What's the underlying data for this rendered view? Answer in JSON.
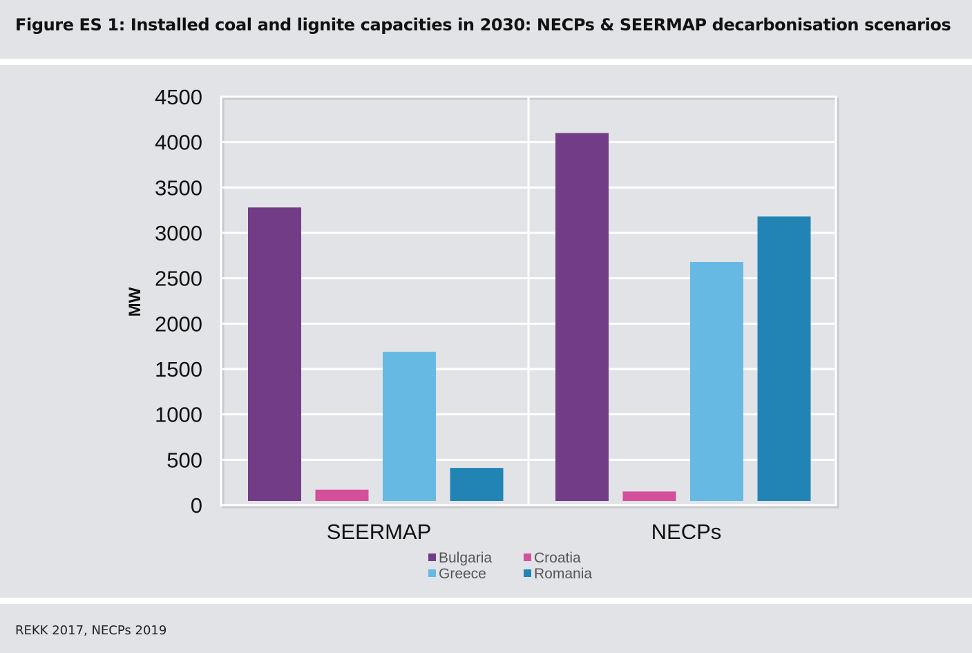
{
  "figure": {
    "title": "Figure ES 1: Installed coal and lignite capacities in 2030: NECPs & SEERMAP decarbonisation scenarios",
    "source": "REKK 2017, NECPs 2019"
  },
  "chart_data": {
    "type": "bar",
    "title": "",
    "xlabel": "",
    "ylabel": "MW",
    "ylim": [
      0,
      4500
    ],
    "yticks": [
      "0",
      "500",
      "1000",
      "1500",
      "2000",
      "2500",
      "3000",
      "3500",
      "4000",
      "4500"
    ],
    "categories": [
      "SEERMAP",
      "NECPs"
    ],
    "series": [
      {
        "name": "Bulgaria",
        "color": "#723c87",
        "values": [
          3280,
          4100
        ]
      },
      {
        "name": "Croatia",
        "color": "#d4509a",
        "values": [
          170,
          150
        ]
      },
      {
        "name": "Greece",
        "color": "#66b9e3",
        "values": [
          1690,
          2680
        ]
      },
      {
        "name": "Romania",
        "color": "#2184b5",
        "values": [
          410,
          3180
        ]
      }
    ],
    "grid": true,
    "legend": "bottom"
  }
}
